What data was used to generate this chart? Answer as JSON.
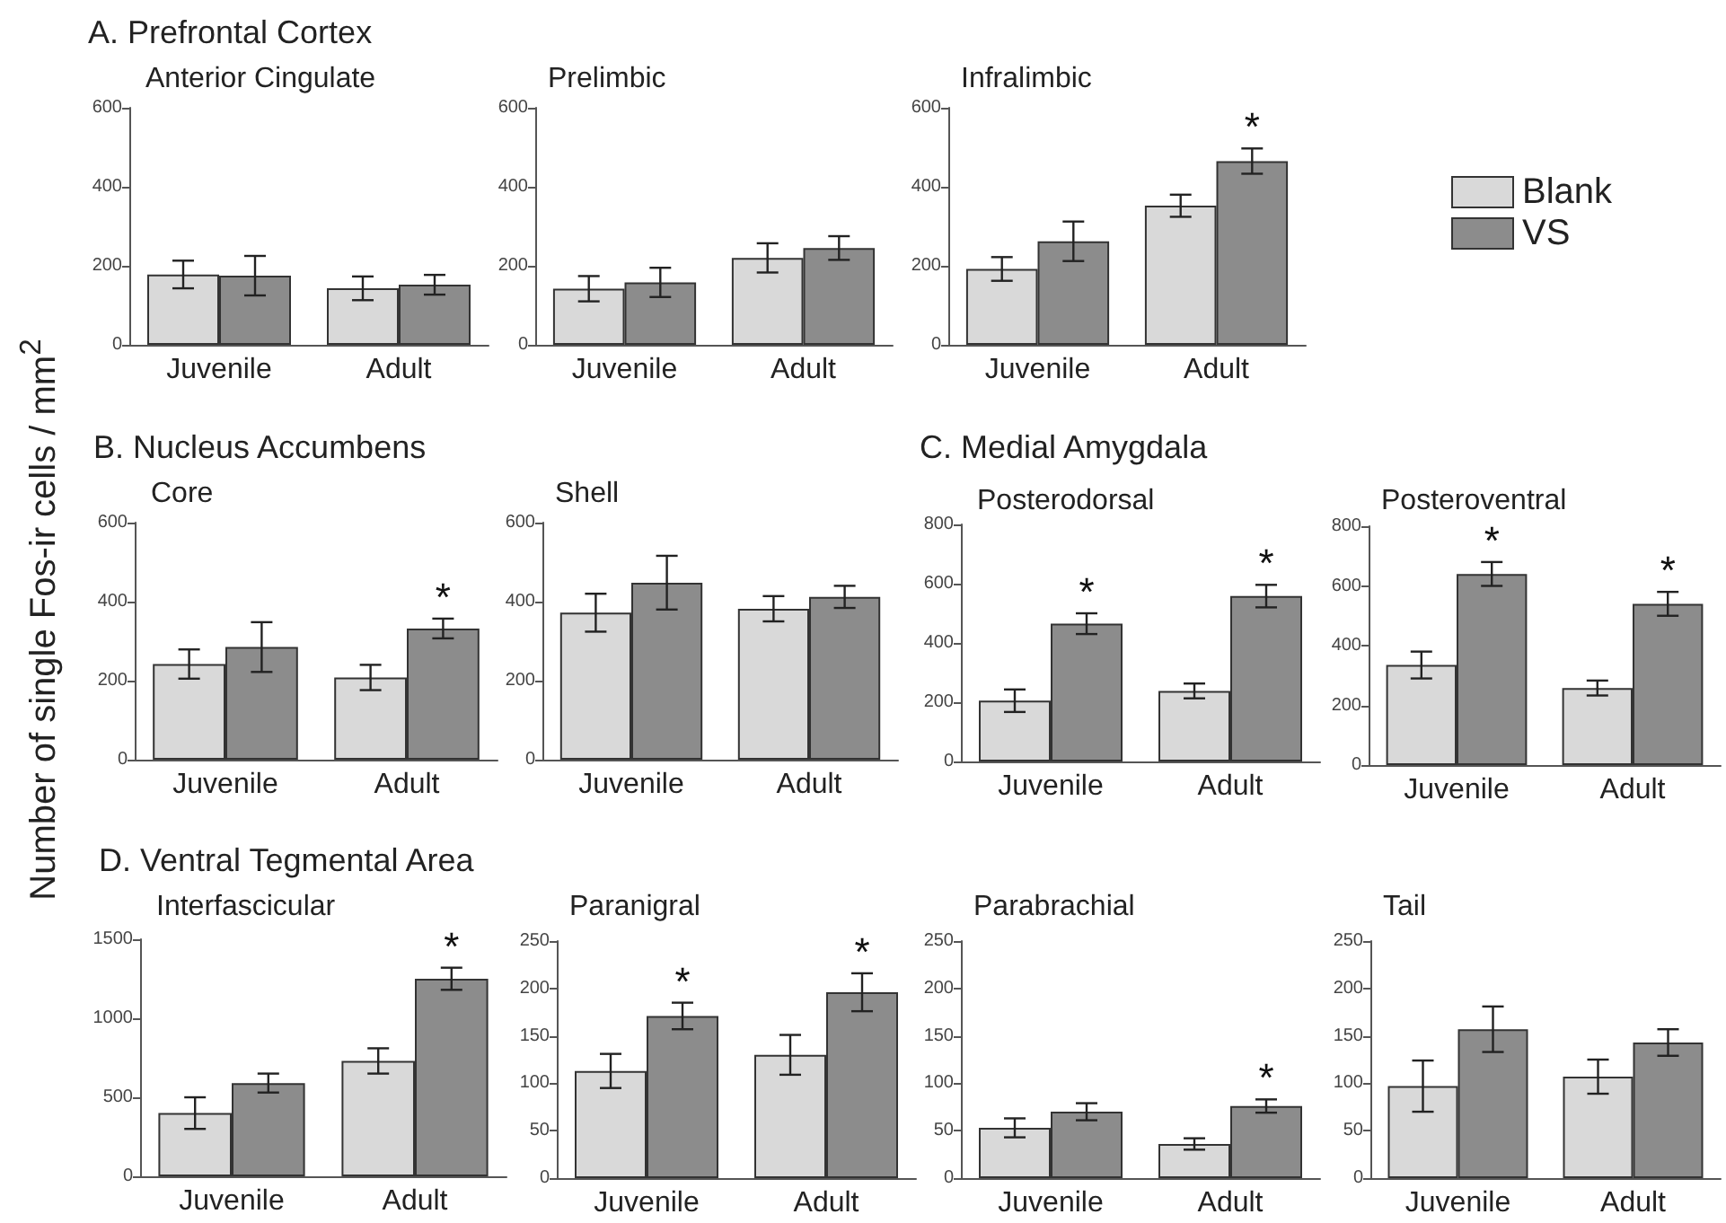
{
  "chart_data": [
    {
      "type": "bar",
      "title": "A. Prefrontal Cortex",
      "subtitle": "Anterior Cingulate",
      "ylabel": "Number of single Fos-ir cells / mm$^{2}$",
      "categories": [
        "Juvenile",
        "Adult"
      ],
      "ylim": [
        0,
        600
      ],
      "yticks": [
        0,
        200,
        400,
        600
      ],
      "series": [
        {
          "color": "#d9d9d9",
          "values": [
            178,
            143
          ],
          "errors": [
            35,
            30
          ]
        },
        {
          "color": "#8c8c8c",
          "values": [
            175,
            152
          ],
          "errors": [
            50,
            25
          ]
        }
      ]
    },
    {
      "type": "bar",
      "title": "Prelimbic",
      "categories": [
        "Juvenile",
        "Adult"
      ],
      "ylim": [
        0,
        600
      ],
      "yticks": [
        0,
        200,
        400,
        600
      ],
      "series": [
        {
          "color": "#d9d9d9",
          "values": [
            142,
            220
          ],
          "errors": [
            32,
            37
          ]
        },
        {
          "color": "#8c8c8c",
          "values": [
            158,
            245
          ],
          "errors": [
            37,
            30
          ]
        }
      ]
    },
    {
      "type": "bar",
      "title": "Infralimbic",
      "categories": [
        "Juvenile",
        "Adult"
      ],
      "ylim": [
        0,
        600
      ],
      "yticks": [
        0,
        200,
        400,
        600
      ],
      "legend": "right",
      "series": [
        {
          "name": "Blank",
          "color": "#d9d9d9",
          "values": [
            192,
            352
          ],
          "errors": [
            30,
            28
          ]
        },
        {
          "name": "VS",
          "color": "#8c8c8c",
          "values": [
            262,
            465
          ],
          "errors": [
            50,
            32
          ],
          "value_labels": [
            null,
            "*"
          ]
        }
      ]
    },
    {
      "type": "bar",
      "title": "B. Nucleus Accumbens",
      "subtitle": "Core",
      "categories": [
        "Juvenile",
        "Adult"
      ],
      "ylim": [
        0,
        600
      ],
      "yticks": [
        0,
        200,
        400,
        600
      ],
      "series": [
        {
          "color": "#d9d9d9",
          "values": [
            242,
            208
          ],
          "errors": [
            37,
            32
          ]
        },
        {
          "color": "#8c8c8c",
          "values": [
            285,
            332
          ],
          "errors": [
            63,
            25
          ],
          "value_labels": [
            null,
            "*"
          ]
        }
      ]
    },
    {
      "type": "bar",
      "title": "Shell",
      "categories": [
        "Juvenile",
        "Adult"
      ],
      "ylim": [
        0,
        600
      ],
      "yticks": [
        0,
        200,
        400,
        600
      ],
      "series": [
        {
          "color": "#d9d9d9",
          "values": [
            372,
            382
          ],
          "errors": [
            48,
            32
          ]
        },
        {
          "color": "#8c8c8c",
          "values": [
            448,
            412
          ],
          "errors": [
            68,
            28
          ]
        }
      ]
    },
    {
      "type": "bar",
      "title": "C. Medial Amygdala",
      "subtitle": "Posterodorsal",
      "categories": [
        "Juvenile",
        "Adult"
      ],
      "ylim": [
        0,
        800
      ],
      "yticks": [
        0,
        200,
        400,
        600,
        800
      ],
      "series": [
        {
          "color": "#d9d9d9",
          "values": [
            205,
            238
          ],
          "errors": [
            38,
            25
          ]
        },
        {
          "color": "#8c8c8c",
          "values": [
            465,
            558
          ],
          "errors": [
            35,
            38
          ],
          "value_labels": [
            "*",
            "*"
          ]
        }
      ]
    },
    {
      "type": "bar",
      "title": "Posteroventral",
      "categories": [
        "Juvenile",
        "Adult"
      ],
      "ylim": [
        0,
        800
      ],
      "yticks": [
        0,
        200,
        400,
        600,
        800
      ],
      "series": [
        {
          "color": "#d9d9d9",
          "values": [
            335,
            258
          ],
          "errors": [
            45,
            25
          ]
        },
        {
          "color": "#8c8c8c",
          "values": [
            640,
            540
          ],
          "errors": [
            40,
            40
          ],
          "value_labels": [
            "*",
            "*"
          ]
        }
      ]
    },
    {
      "type": "bar",
      "title": "D. Ventral Tegmental Area",
      "subtitle": "Interfascicular",
      "categories": [
        "Juvenile",
        "Adult"
      ],
      "ylim": [
        0,
        1500
      ],
      "yticks": [
        0,
        500,
        1000,
        1500
      ],
      "series": [
        {
          "color": "#d9d9d9",
          "values": [
            400,
            730
          ],
          "errors": [
            100,
            80
          ]
        },
        {
          "color": "#8c8c8c",
          "values": [
            590,
            1250
          ],
          "errors": [
            60,
            70
          ],
          "value_labels": [
            null,
            "*"
          ]
        }
      ]
    },
    {
      "type": "bar",
      "title": "Paranigral",
      "categories": [
        "Juvenile",
        "Adult"
      ],
      "ylim": [
        0,
        250
      ],
      "yticks": [
        0,
        50,
        100,
        150,
        200,
        250
      ],
      "series": [
        {
          "color": "#d9d9d9",
          "values": [
            113,
            130
          ],
          "errors": [
            18,
            21
          ]
        },
        {
          "color": "#8c8c8c",
          "values": [
            171,
            196
          ],
          "errors": [
            14,
            20
          ],
          "value_labels": [
            "*",
            "*"
          ]
        }
      ]
    },
    {
      "type": "bar",
      "title": "Parabrachial",
      "categories": [
        "Juvenile",
        "Adult"
      ],
      "ylim": [
        0,
        250
      ],
      "yticks": [
        0,
        50,
        100,
        150,
        200,
        250
      ],
      "series": [
        {
          "color": "#d9d9d9",
          "values": [
            53,
            36
          ],
          "errors": [
            10,
            6
          ]
        },
        {
          "color": "#8c8c8c",
          "values": [
            70,
            76
          ],
          "errors": [
            9,
            7
          ],
          "value_labels": [
            null,
            "*"
          ]
        }
      ]
    },
    {
      "type": "bar",
      "title": "Tail",
      "categories": [
        "Juvenile",
        "Adult"
      ],
      "ylim": [
        0,
        250
      ],
      "yticks": [
        0,
        50,
        100,
        150,
        200,
        250
      ],
      "series": [
        {
          "color": "#d9d9d9",
          "values": [
            97,
            107
          ],
          "errors": [
            27,
            18
          ]
        },
        {
          "color": "#8c8c8c",
          "values": [
            157,
            143
          ],
          "errors": [
            24,
            14
          ]
        }
      ]
    }
  ]
}
